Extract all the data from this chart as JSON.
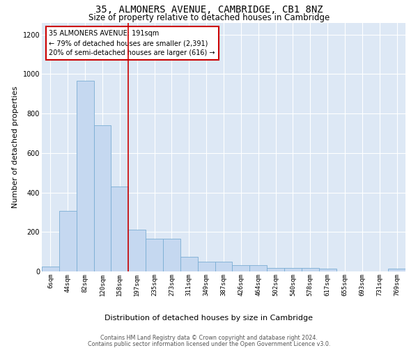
{
  "title": "35, ALMONERS AVENUE, CAMBRIDGE, CB1 8NZ",
  "subtitle": "Size of property relative to detached houses in Cambridge",
  "xlabel": "Distribution of detached houses by size in Cambridge",
  "ylabel": "Number of detached properties",
  "categories": [
    "6sqm",
    "44sqm",
    "82sqm",
    "120sqm",
    "158sqm",
    "197sqm",
    "235sqm",
    "273sqm",
    "311sqm",
    "349sqm",
    "387sqm",
    "426sqm",
    "464sqm",
    "502sqm",
    "540sqm",
    "578sqm",
    "617sqm",
    "655sqm",
    "693sqm",
    "731sqm",
    "769sqm"
  ],
  "values": [
    25,
    305,
    965,
    740,
    430,
    210,
    165,
    165,
    75,
    48,
    48,
    30,
    30,
    18,
    18,
    18,
    14,
    0,
    0,
    0,
    14
  ],
  "bar_color": "#c5d8f0",
  "bar_edge_color": "#7aadd4",
  "red_line_x": 4.5,
  "annotation_text": "35 ALMONERS AVENUE: 191sqm\n← 79% of detached houses are smaller (2,391)\n20% of semi-detached houses are larger (616) →",
  "annotation_box_color": "#ffffff",
  "annotation_box_edge": "#cc0000",
  "red_line_color": "#cc0000",
  "ylim": [
    0,
    1260
  ],
  "yticks": [
    0,
    200,
    400,
    600,
    800,
    1000,
    1200
  ],
  "bg_color": "#dde8f5",
  "footer1": "Contains HM Land Registry data © Crown copyright and database right 2024.",
  "footer2": "Contains public sector information licensed under the Open Government Licence v3.0.",
  "title_fontsize": 10,
  "subtitle_fontsize": 8.5,
  "tick_fontsize": 6.5,
  "ylabel_fontsize": 8,
  "xlabel_fontsize": 8,
  "annotation_fontsize": 7,
  "footer_fontsize": 5.8
}
